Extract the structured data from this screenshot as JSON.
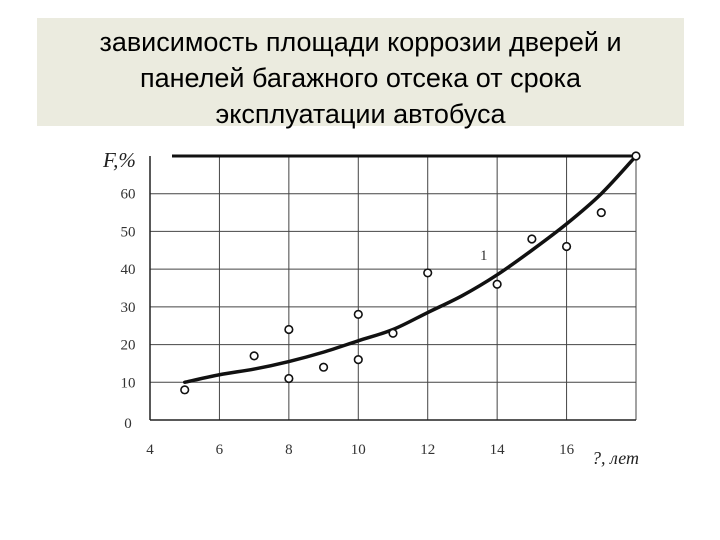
{
  "header": {
    "title_lines": [
      "зависимость площади коррозии дверей и",
      "панелей багажного отсека от срока",
      "эксплуатации автобуса"
    ]
  },
  "chart_data": {
    "type": "scatter",
    "title": "зависимость площади коррозии дверей и панелей багажного отсека от срока эксплуатации автобуса",
    "xlabel": "?, лет",
    "ylabel": "F,%",
    "xlim": [
      4,
      18
    ],
    "ylim": [
      0,
      70
    ],
    "x_ticks": [
      4,
      6,
      8,
      10,
      12,
      14,
      16
    ],
    "y_ticks": [
      0,
      10,
      20,
      30,
      40,
      50,
      60
    ],
    "grid": true,
    "curve_label": "1",
    "points": [
      {
        "x": 5,
        "y": 8
      },
      {
        "x": 7,
        "y": 17
      },
      {
        "x": 8,
        "y": 24
      },
      {
        "x": 8,
        "y": 11
      },
      {
        "x": 9,
        "y": 14
      },
      {
        "x": 10,
        "y": 28
      },
      {
        "x": 10,
        "y": 16
      },
      {
        "x": 11,
        "y": 23
      },
      {
        "x": 12,
        "y": 39
      },
      {
        "x": 14,
        "y": 36
      },
      {
        "x": 15,
        "y": 48
      },
      {
        "x": 16,
        "y": 46
      },
      {
        "x": 17,
        "y": 55
      },
      {
        "x": 18,
        "y": 70
      }
    ],
    "fit_curve": [
      {
        "x": 5,
        "y": 10
      },
      {
        "x": 6,
        "y": 12
      },
      {
        "x": 7,
        "y": 13.5
      },
      {
        "x": 8,
        "y": 15.5
      },
      {
        "x": 9,
        "y": 18
      },
      {
        "x": 10,
        "y": 21
      },
      {
        "x": 11,
        "y": 24
      },
      {
        "x": 12,
        "y": 28.5
      },
      {
        "x": 13,
        "y": 33
      },
      {
        "x": 14,
        "y": 38.5
      },
      {
        "x": 15,
        "y": 45
      },
      {
        "x": 16,
        "y": 52
      },
      {
        "x": 17,
        "y": 60
      },
      {
        "x": 18,
        "y": 70
      }
    ]
  }
}
